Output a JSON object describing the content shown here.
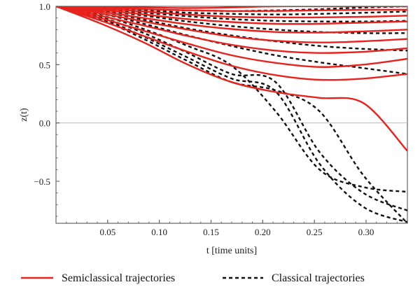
{
  "chart_data": {
    "type": "line",
    "xlabel": "t [time units]",
    "ylabel": "z(t)",
    "xlim": [
      0,
      0.34
    ],
    "ylim": [
      -0.86,
      1.0
    ],
    "xticks": [
      0.05,
      0.1,
      0.15,
      0.2,
      0.25,
      0.3
    ],
    "xtick_labels": [
      "0.05",
      "0.10",
      "0.15",
      "0.20",
      "0.25",
      "0.30"
    ],
    "yticks": [
      -0.5,
      0.0,
      0.5,
      1.0
    ],
    "ytick_labels": [
      "-0.5",
      "0.0",
      "0.5",
      "1.0"
    ],
    "zero_line": true,
    "legend_placement": "bottom",
    "legend": [
      {
        "label": "Semiclassical trajectories",
        "color": "#e8221c",
        "style": "solid"
      },
      {
        "label": "Classical trajectories",
        "color": "#111111",
        "style": "dashed"
      }
    ],
    "x": [
      0.0,
      0.0425,
      0.085,
      0.1275,
      0.17,
      0.2125,
      0.255,
      0.2975,
      0.34
    ],
    "semiclassical": [
      [
        1.0,
        0.995,
        0.99,
        0.985,
        0.99,
        1.0,
        1.0,
        1.0,
        1.0
      ],
      [
        1.0,
        0.99,
        0.975,
        0.965,
        0.96,
        0.96,
        0.965,
        0.97,
        0.97
      ],
      [
        1.0,
        0.98,
        0.955,
        0.93,
        0.91,
        0.905,
        0.905,
        0.91,
        0.92
      ],
      [
        1.0,
        0.97,
        0.93,
        0.89,
        0.865,
        0.85,
        0.85,
        0.86,
        0.87
      ],
      [
        1.0,
        0.955,
        0.9,
        0.845,
        0.805,
        0.78,
        0.775,
        0.785,
        0.8
      ],
      [
        1.0,
        0.94,
        0.87,
        0.8,
        0.74,
        0.705,
        0.69,
        0.7,
        0.72
      ],
      [
        1.0,
        0.92,
        0.835,
        0.745,
        0.67,
        0.62,
        0.6,
        0.61,
        0.64
      ],
      [
        1.0,
        0.9,
        0.79,
        0.68,
        0.58,
        0.515,
        0.48,
        0.5,
        0.55
      ],
      [
        1.0,
        0.88,
        0.745,
        0.61,
        0.49,
        0.41,
        0.37,
        0.38,
        0.42
      ],
      [
        1.0,
        0.855,
        0.69,
        0.5,
        0.35,
        0.265,
        0.215,
        0.17,
        -0.24
      ]
    ],
    "classical": [
      [
        1.0,
        0.99,
        0.975,
        0.965,
        0.96,
        0.965,
        0.975,
        0.99,
        1.0
      ],
      [
        1.0,
        0.985,
        0.965,
        0.945,
        0.935,
        0.93,
        0.935,
        0.945,
        0.955
      ],
      [
        1.0,
        0.975,
        0.945,
        0.915,
        0.89,
        0.875,
        0.87,
        0.87,
        0.875
      ],
      [
        1.0,
        0.965,
        0.92,
        0.87,
        0.83,
        0.8,
        0.78,
        0.77,
        0.77
      ],
      [
        1.0,
        0.955,
        0.885,
        0.81,
        0.75,
        0.7,
        0.66,
        0.635,
        0.62
      ],
      [
        1.0,
        0.94,
        0.85,
        0.75,
        0.66,
        0.58,
        0.52,
        0.47,
        0.42
      ],
      [
        1.0,
        0.925,
        0.805,
        0.66,
        0.49,
        0.1,
        -0.4,
        -0.55,
        -0.59
      ],
      [
        1.0,
        0.91,
        0.77,
        0.6,
        0.42,
        0.35,
        -0.25,
        -0.6,
        -0.75
      ],
      [
        1.0,
        0.9,
        0.74,
        0.56,
        0.38,
        0.27,
        -0.35,
        -0.72,
        -0.85
      ],
      [
        1.0,
        0.89,
        0.72,
        0.53,
        0.35,
        0.28,
        0.1,
        -0.45,
        -0.86
      ]
    ]
  }
}
